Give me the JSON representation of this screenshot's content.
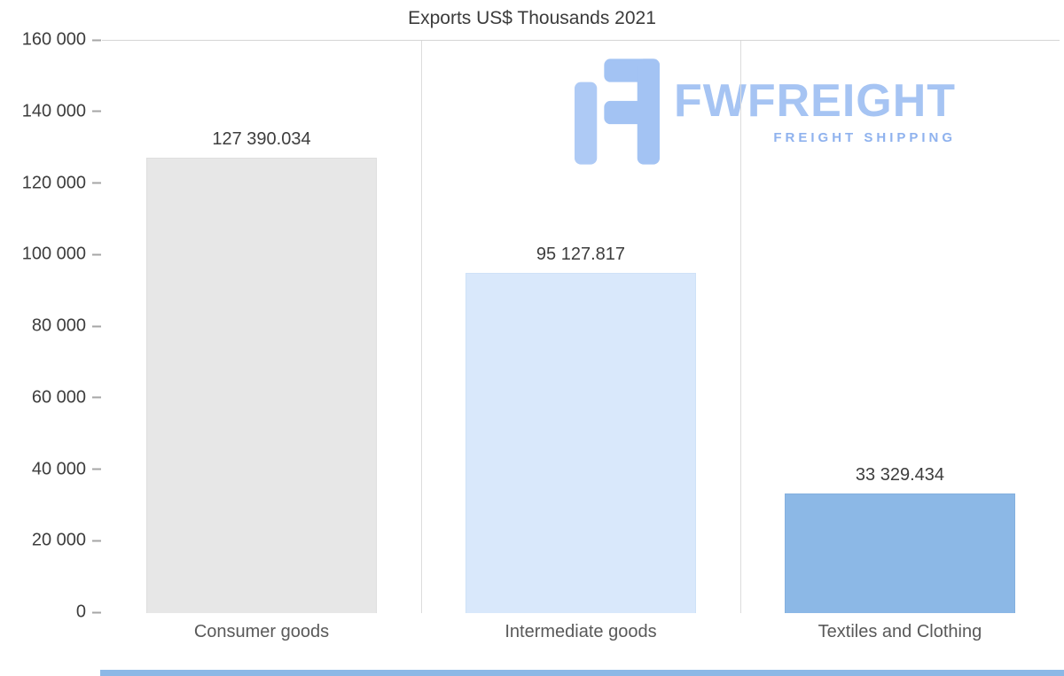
{
  "logo": {
    "name": "FWFREIGHT",
    "tagline": "FREIGHT SHIPPING",
    "colors": {
      "left_bar": "#aecaf5",
      "glyph": "#a3c3f3",
      "text": "#a6c4f3",
      "tagline": "#8fb2ee"
    }
  },
  "colors": {
    "accent_strip": "#8cb8e6",
    "grid": "#dcdcdc"
  },
  "chart_data": {
    "type": "bar",
    "title": "Exports US$ Thousands 2021",
    "categories": [
      "Consumer goods",
      "Intermediate goods",
      "Textiles and Clothing"
    ],
    "values": [
      127390.034,
      95127.817,
      33329.434
    ],
    "value_labels": [
      "127 390.034",
      "95 127.817",
      "33 329.434"
    ],
    "bar_colors": [
      "#e7e7e7",
      "#d9e8fb",
      "#8cb8e6"
    ],
    "bar_border_colors": [
      "#dedede",
      "#cfe2f8",
      "#84b0de"
    ],
    "xlabel": "",
    "ylabel": "",
    "ylim": [
      0,
      160000
    ],
    "ytick_step": 20000,
    "ytick_labels": [
      "160 000",
      "140 000",
      "120 000",
      "100 000",
      "80 000",
      "60 000",
      "40 000",
      "20 000",
      "0"
    ],
    "grid": "vertical-separators-only",
    "legend": "none"
  }
}
